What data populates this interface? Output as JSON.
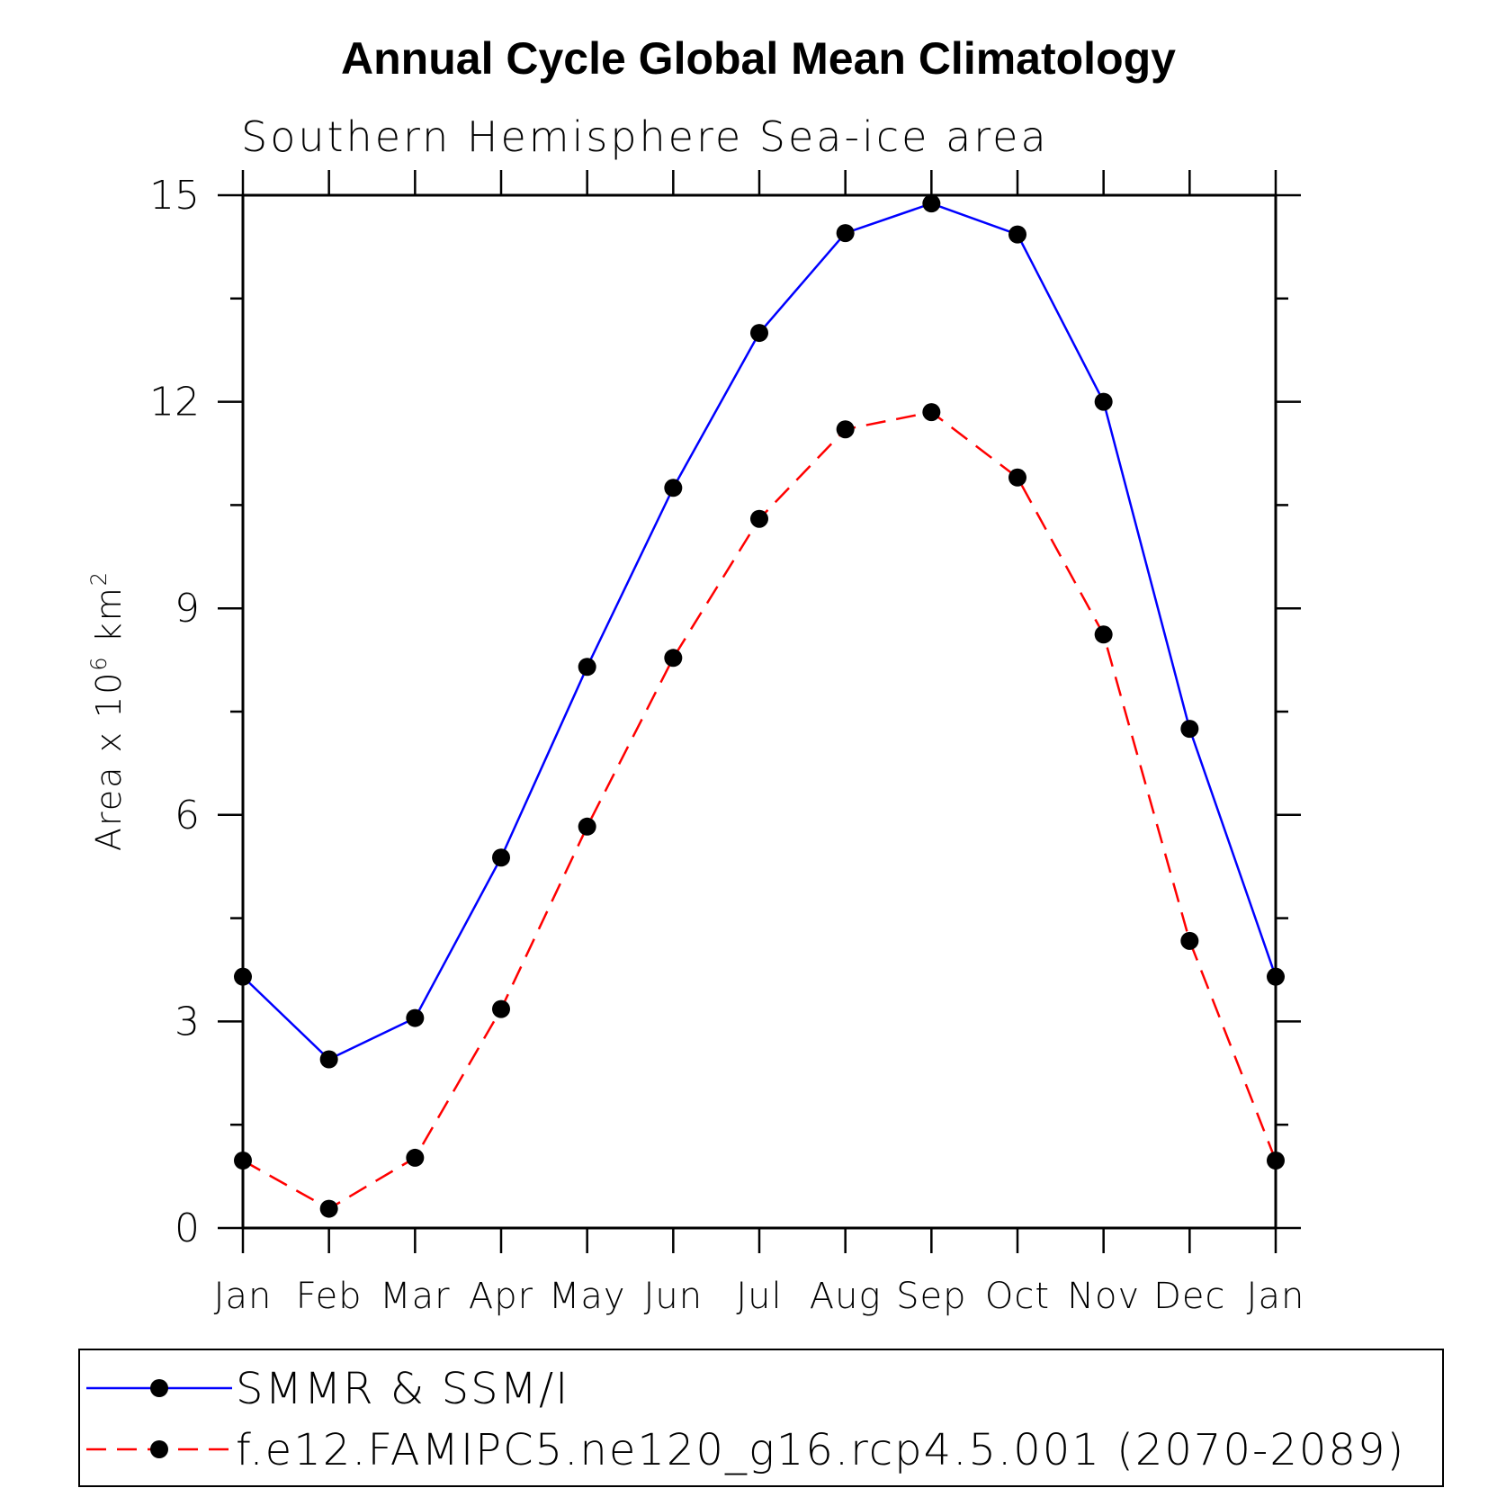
{
  "chart_data": {
    "type": "line",
    "title": "Annual Cycle Global Mean Climatology",
    "subtitle": "Southern Hemisphere Sea-ice area",
    "ylabel_prefix": "Area x 10",
    "ylabel_exp1": "6",
    "ylabel_unit": " km",
    "ylabel_exp2": "2",
    "categories": [
      "Jan",
      "Feb",
      "Mar",
      "Apr",
      "May",
      "Jun",
      "Jul",
      "Aug",
      "Sep",
      "Oct",
      "Nov",
      "Dec",
      "Jan"
    ],
    "ylim": [
      0,
      15
    ],
    "yticks": [
      "0",
      "3",
      "6",
      "9",
      "12",
      "15"
    ],
    "grid": false,
    "legend_position": "bottom",
    "series": [
      {
        "name": "SMMR & SSM/I",
        "color": "#0000ff",
        "line_style": "solid",
        "marker": "filled-circle",
        "values": [
          3.65,
          2.45,
          3.05,
          5.38,
          8.15,
          10.75,
          13.0,
          14.45,
          14.88,
          14.43,
          12.0,
          7.25,
          3.65
        ]
      },
      {
        "name": "f.e12.FAMIPC5.ne120_g16.rcp4.5.001 (2070-2089)",
        "color": "#ff0000",
        "line_style": "dashed",
        "marker": "filled-circle",
        "values": [
          0.98,
          0.28,
          1.02,
          3.18,
          5.83,
          8.28,
          10.3,
          11.6,
          11.85,
          10.9,
          8.62,
          4.17,
          0.98
        ]
      }
    ]
  }
}
